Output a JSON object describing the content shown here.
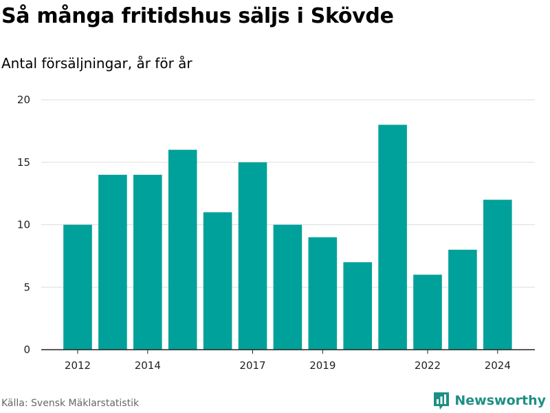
{
  "header": {
    "title": "Så många fritidshus säljs i Skövde",
    "subtitle": "Antal försäljningar, år för år"
  },
  "footer": {
    "source": "Källa: Svensk Mäklarstatistik",
    "brand": "Newsworthy",
    "brand_icon": "bar-chart-logo-icon"
  },
  "colors": {
    "bar": "#00a19a",
    "grid": "#dddddd",
    "axis": "#222222",
    "brand": "#1d8f84"
  },
  "chart_data": {
    "type": "bar",
    "categories": [
      "2012",
      "2013",
      "2014",
      "2015",
      "2016",
      "2017",
      "2018",
      "2019",
      "2020",
      "2021",
      "2022",
      "2023",
      "2024"
    ],
    "values": [
      10,
      14,
      14,
      16,
      11,
      15,
      10,
      9,
      7,
      18,
      6,
      8,
      12
    ],
    "x_tick_labels": [
      "2012",
      "2014",
      "2017",
      "2019",
      "2022",
      "2024"
    ],
    "y_ticks": [
      0,
      5,
      10,
      15,
      20
    ],
    "ylim": [
      0,
      20
    ],
    "grid": true,
    "legend": false
  }
}
